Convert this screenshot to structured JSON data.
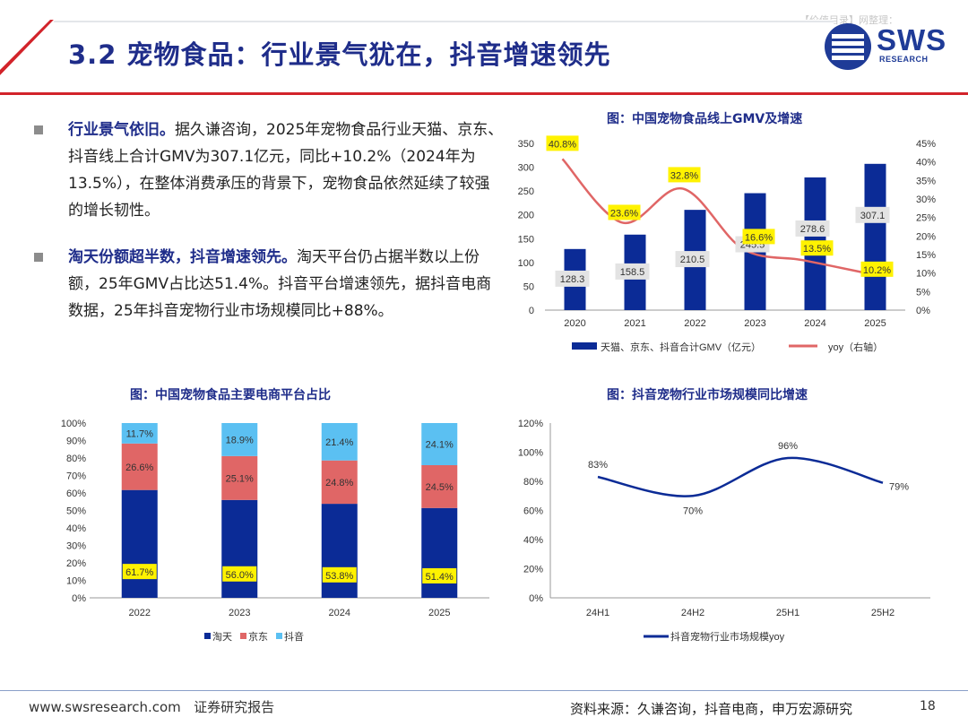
{
  "watermark": "【价值目录】网整理：",
  "title": "3.2 宠物食品：行业景气犹在，抖音增速领先",
  "logo": {
    "text": "SWS",
    "subtext": "RESEARCH",
    "color": "#1f3b97"
  },
  "accent_red": "#d2232a",
  "bullets": [
    {
      "heading": "行业景气依旧。",
      "body": "据久谦咨询，2025年宠物食品行业天猫、京东、抖音线上合计GMV为307.1亿元，同比+10.2%（2024年为13.5%），在整体消费承压的背景下，宠物食品依然延续了较强的增长韧性。"
    },
    {
      "heading": "淘天份额超半数，抖音增速领先。",
      "body": "淘天平台仍占据半数以上份额，25年GMV占比达51.4%。抖音平台增速领先，据抖音电商数据，25年抖音宠物行业市场规模同比+88%。"
    }
  ],
  "chart_data": [
    {
      "type": "bar",
      "title": "图：中国宠物食品线上GMV及增速",
      "categories": [
        "2020",
        "2021",
        "2022",
        "2023",
        "2024",
        "2025"
      ],
      "series": [
        {
          "name": "天猫、京东、抖音合计GMV（亿元）",
          "type": "bar",
          "axis": "left",
          "color": "#0b2b96",
          "values": [
            128.3,
            158.5,
            210.5,
            245.5,
            278.6,
            307.1
          ],
          "labels": [
            "128.3",
            "158.5",
            "210.5",
            "245.5",
            "278.6",
            "307.1"
          ]
        },
        {
          "name": "yoy（右轴）",
          "type": "line",
          "axis": "right",
          "color": "#e06666",
          "values": [
            40.8,
            23.6,
            32.8,
            16.6,
            13.5,
            10.2
          ],
          "labels": [
            "40.8%",
            "23.6%",
            "32.8%",
            "16.6%",
            "13.5%",
            "10.2%"
          ]
        }
      ],
      "yticks_left": [
        "0",
        "50",
        "100",
        "150",
        "200",
        "250",
        "300",
        "350"
      ],
      "yticks_right": [
        "0%",
        "5%",
        "10%",
        "15%",
        "20%",
        "25%",
        "30%",
        "35%",
        "40%",
        "45%"
      ],
      "ylim_left": [
        0,
        350
      ],
      "ylim_right": [
        0,
        45
      ],
      "legend": "bottom"
    },
    {
      "type": "bar",
      "stacked": true,
      "title": "图：中国宠物食品主要电商平台占比",
      "categories": [
        "2022",
        "2023",
        "2024",
        "2025"
      ],
      "series": [
        {
          "name": "淘天",
          "color": "#0b2b96",
          "values": [
            61.7,
            56.0,
            53.8,
            51.4
          ],
          "labels": [
            "61.7%",
            "56.0%",
            "53.8%",
            "51.4%"
          ]
        },
        {
          "name": "京东",
          "color": "#e06666",
          "values": [
            26.6,
            25.1,
            24.8,
            24.5
          ],
          "labels": [
            "26.6%",
            "25.1%",
            "24.8%",
            "24.5%"
          ]
        },
        {
          "name": "抖音",
          "color": "#5bc0f2",
          "values": [
            11.7,
            18.9,
            21.4,
            24.1
          ],
          "labels": [
            "11.7%",
            "18.9%",
            "21.4%",
            "24.1%"
          ]
        }
      ],
      "yticks": [
        "0%",
        "10%",
        "20%",
        "30%",
        "40%",
        "50%",
        "60%",
        "70%",
        "80%",
        "90%",
        "100%"
      ],
      "ylim": [
        0,
        100
      ],
      "legend": "bottom"
    },
    {
      "type": "line",
      "title": "图：抖音宠物行业市场规模同比增速",
      "categories": [
        "24H1",
        "24H2",
        "25H1",
        "25H2"
      ],
      "series": [
        {
          "name": "抖音宠物行业市场规模yoy",
          "color": "#0b2b96",
          "values": [
            83,
            70,
            96,
            79
          ],
          "labels": [
            "83%",
            "70%",
            "96%",
            "79%"
          ]
        }
      ],
      "yticks": [
        "0%",
        "20%",
        "40%",
        "60%",
        "80%",
        "100%",
        "120%"
      ],
      "ylim": [
        0,
        120
      ],
      "legend": "bottom"
    }
  ],
  "footer": {
    "website": "www.swsresearch.com",
    "report_type": "证券研究报告",
    "source": "资料来源：久谦咨询，抖音电商，申万宏源研究",
    "page": "18"
  }
}
